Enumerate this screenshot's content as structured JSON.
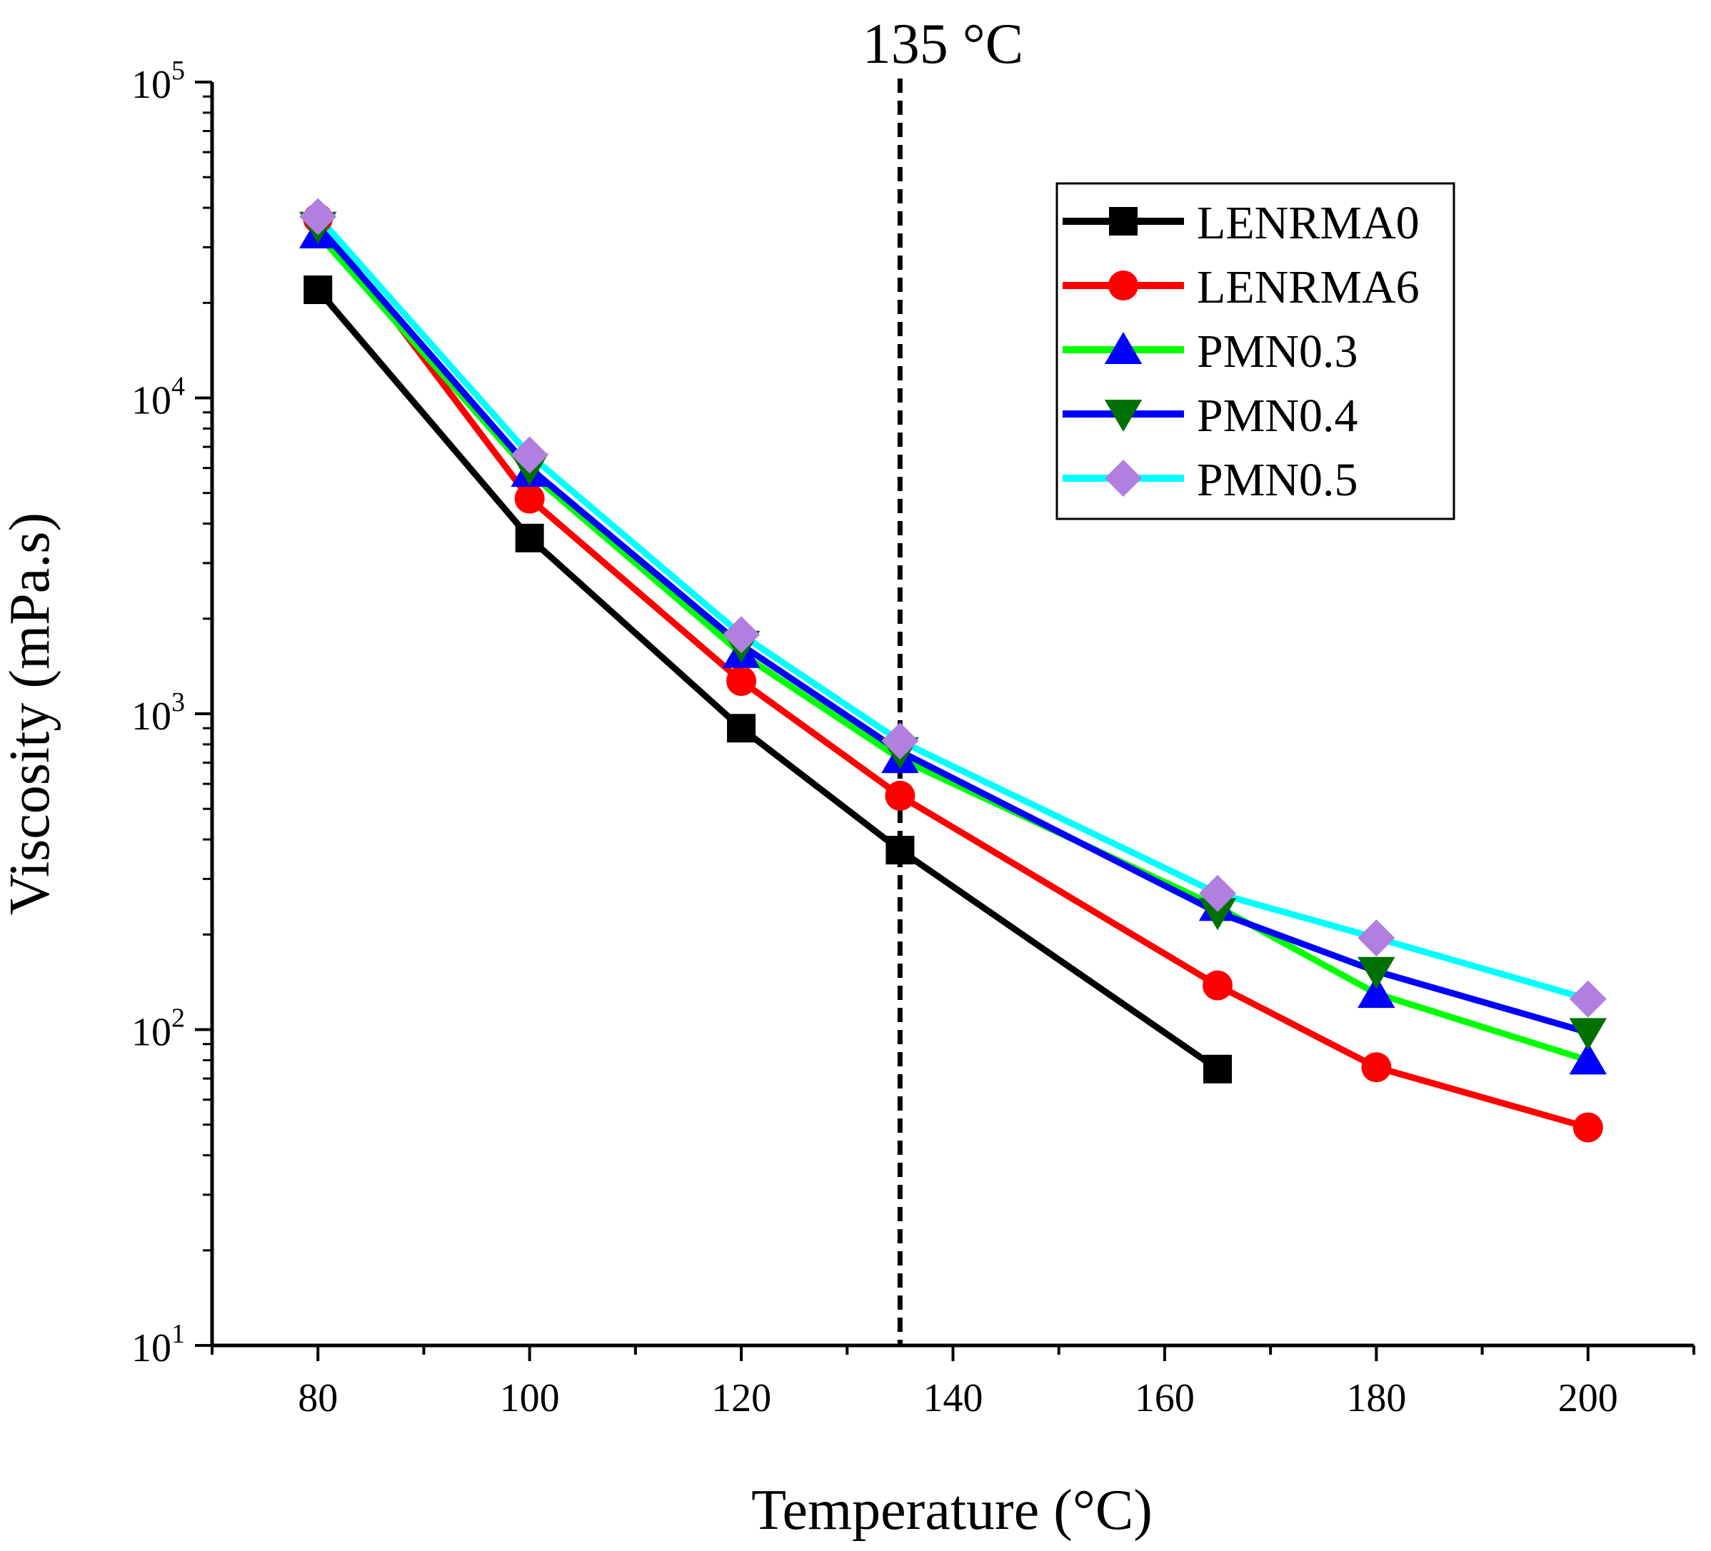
{
  "chart_data": {
    "type": "line",
    "title": "",
    "xlabel": "Temperature (°C)",
    "ylabel": "Viscosity (mPa.s)",
    "x_scale": "linear",
    "y_scale": "log",
    "xlim": [
      70,
      210
    ],
    "ylim": [
      10,
      100000
    ],
    "x_ticks": [
      80,
      100,
      120,
      140,
      160,
      180,
      200
    ],
    "x_tick_labels": [
      "80",
      "100",
      "120",
      "140",
      "160",
      "180",
      "200"
    ],
    "y_ticks": [
      {
        "value": 10,
        "base": "10",
        "exp": "1"
      },
      {
        "value": 100,
        "base": "10",
        "exp": "2"
      },
      {
        "value": 1000,
        "base": "10",
        "exp": "3"
      },
      {
        "value": 10000,
        "base": "10",
        "exp": "4"
      },
      {
        "value": 100000,
        "base": "10",
        "exp": "5"
      }
    ],
    "grid": false,
    "legend_position": "top-right",
    "reference_line": {
      "x": 135,
      "label": "135 °C",
      "style": "dashed"
    },
    "series": [
      {
        "name": "LENRMA0",
        "color": "#000000",
        "marker": "square",
        "marker_color": "#000000",
        "x": [
          80,
          100,
          120,
          135,
          165
        ],
        "values": [
          22000,
          3600,
          900,
          370,
          75
        ]
      },
      {
        "name": "LENRMA6",
        "color": "#ff0000",
        "marker": "circle",
        "marker_color": "#ff0000",
        "x": [
          80,
          100,
          120,
          135,
          165,
          180,
          200
        ],
        "values": [
          37000,
          4800,
          1270,
          550,
          138,
          76,
          49
        ]
      },
      {
        "name": "PMN0.3",
        "color": "#00ff00",
        "marker": "triangle-up",
        "marker_color": "#0000ff",
        "x": [
          80,
          100,
          120,
          135,
          165,
          180,
          200
        ],
        "values": [
          33000,
          5800,
          1550,
          720,
          245,
          130,
          80
        ]
      },
      {
        "name": "PMN0.4",
        "color": "#0000ff",
        "marker": "triangle-down",
        "marker_color": "#007000",
        "x": [
          80,
          100,
          120,
          135,
          165,
          180,
          200
        ],
        "values": [
          35000,
          6000,
          1650,
          760,
          235,
          153,
          98
        ]
      },
      {
        "name": "PMN0.5",
        "color": "#00ffff",
        "marker": "diamond",
        "marker_color": "#b17fe0",
        "x": [
          80,
          100,
          120,
          135,
          165,
          180,
          200
        ],
        "values": [
          37500,
          6600,
          1780,
          820,
          270,
          195,
          125
        ]
      }
    ]
  }
}
